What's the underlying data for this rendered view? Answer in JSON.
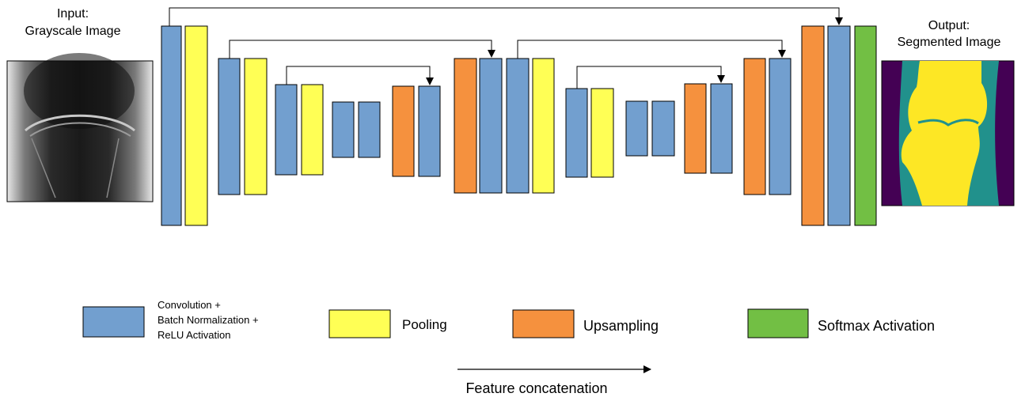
{
  "input_label": {
    "line1": "Input:",
    "line2": "Grayscale Image"
  },
  "output_label": {
    "line1": "Output:",
    "line2": "Segmented Image"
  },
  "colors": {
    "conv": "#729fcf",
    "pool": "#ffff55",
    "upsample": "#f5913e",
    "softmax": "#72bf44",
    "seg_background": "#440154",
    "seg_soft_tissue": "#21918c",
    "seg_bone": "#fde725"
  },
  "legend": {
    "conv": {
      "line1": "Convolution +",
      "line2": "Batch Normalization +",
      "line3": "ReLU Activation"
    },
    "pool": "Pooling",
    "upsample": "Upsampling",
    "softmax": "Softmax Activation",
    "concat": "Feature concatenation"
  }
}
